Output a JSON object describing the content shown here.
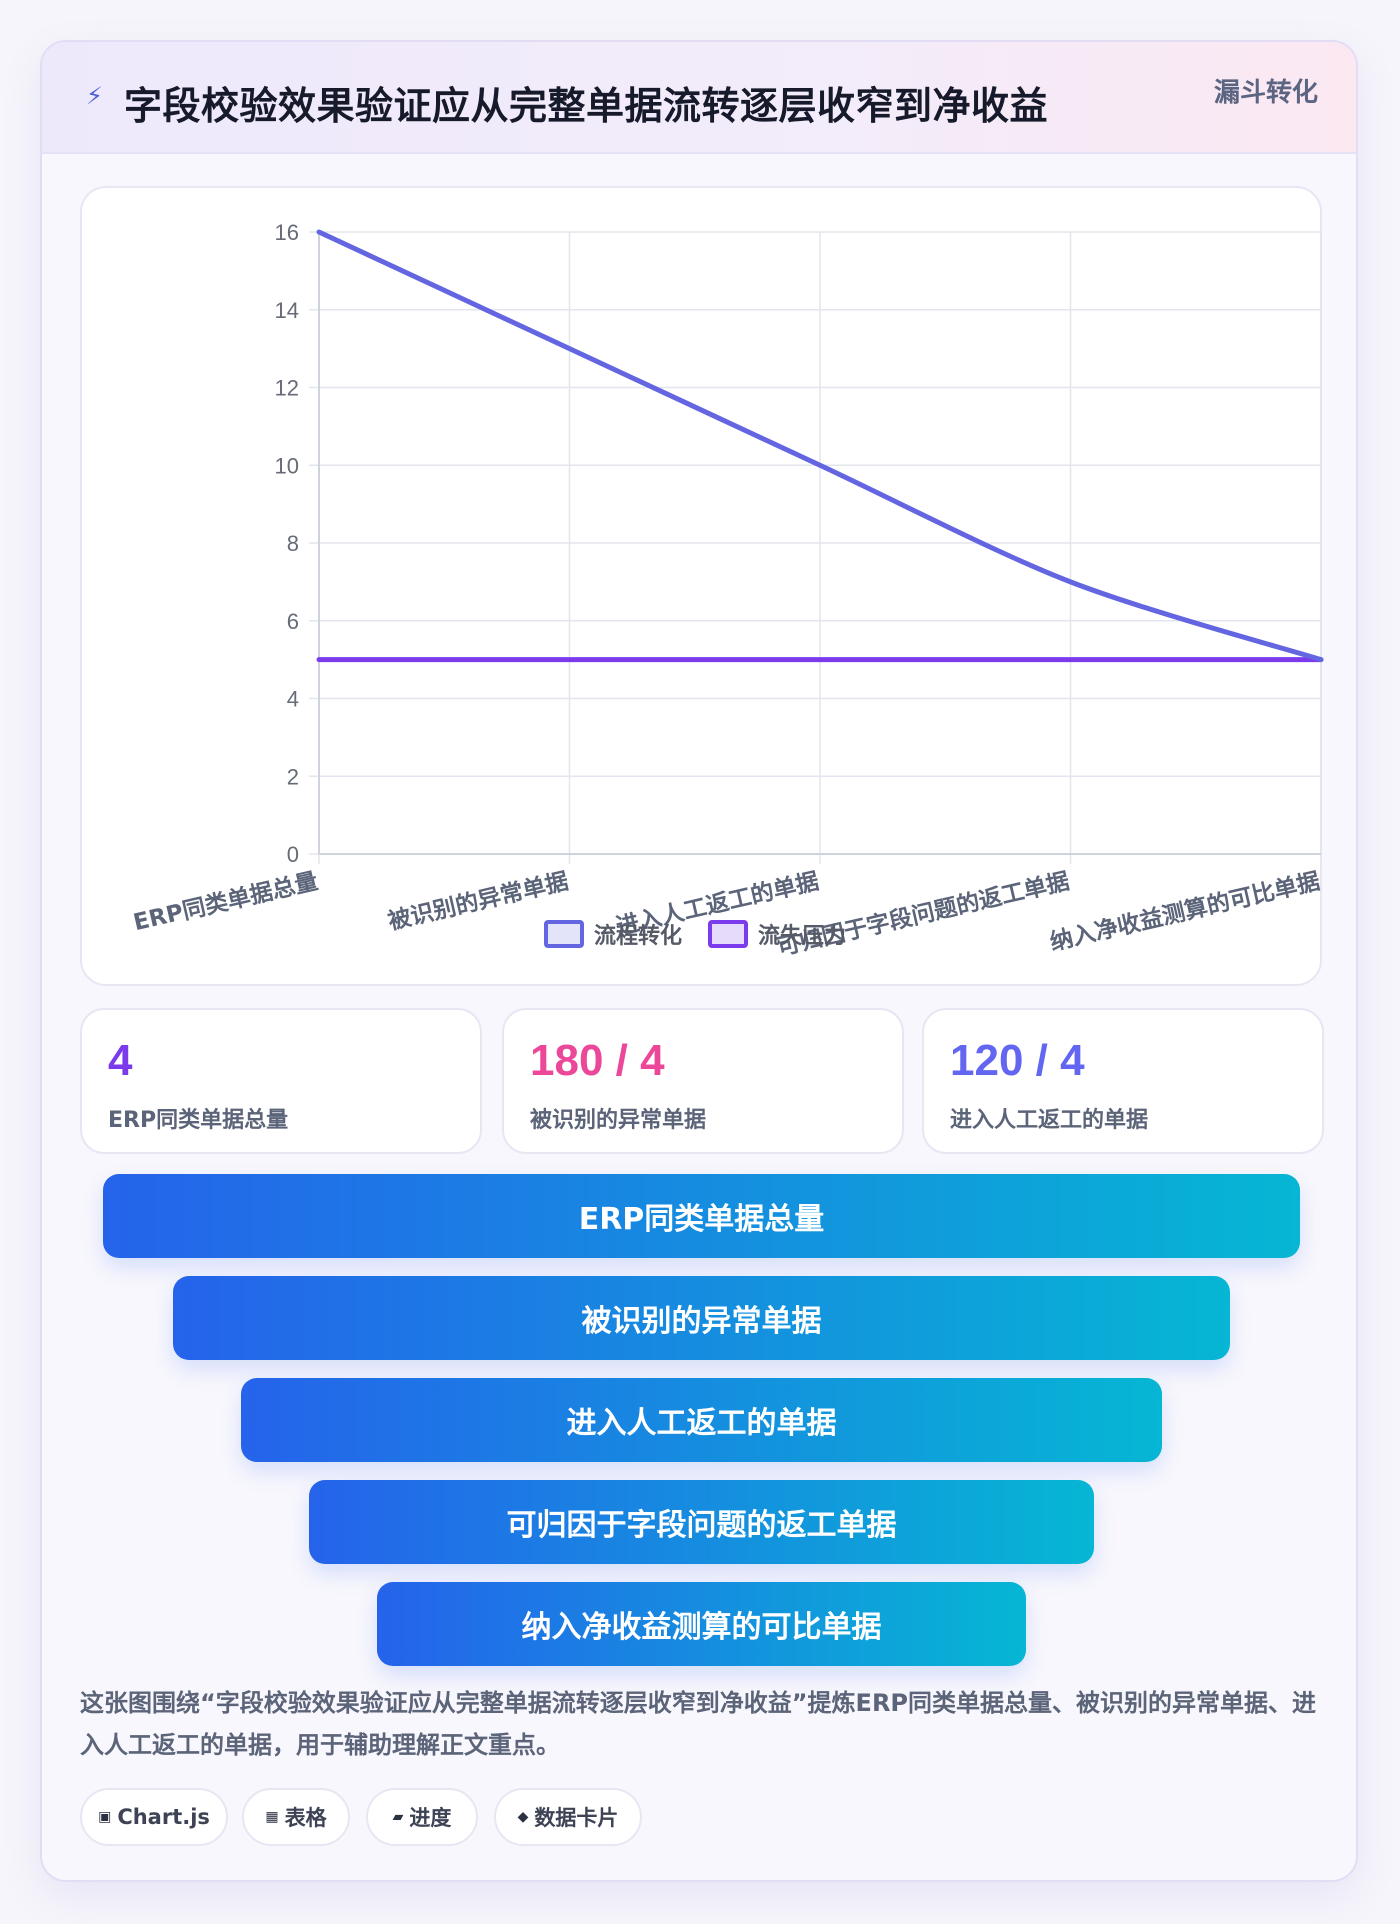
{
  "header": {
    "icon": "lightning-icon",
    "title": "字段校验效果验证应从完整单据流转逐层收窄到净收益",
    "tag": "漏斗转化"
  },
  "chart_data": {
    "type": "line",
    "categories": [
      "ERP同类单据总量",
      "被识别的异常单据",
      "进入人工返工的单据",
      "可归因于字段问题的返工单据",
      "纳入净收益测算的可比单据"
    ],
    "series": [
      {
        "name": "流程转化",
        "values": [
          16,
          13,
          10,
          7,
          5
        ],
        "color": "#6366e0"
      },
      {
        "name": "流失压力",
        "values": [
          5,
          5,
          5,
          5,
          5
        ],
        "color": "#7c3aed"
      }
    ],
    "ylim": [
      0,
      16
    ],
    "yticks": [
      0,
      2,
      4,
      6,
      8,
      10,
      12,
      14,
      16
    ],
    "grid": true,
    "legend": "bottom"
  },
  "stats": [
    {
      "value": "4",
      "label": "ERP同类单据总量",
      "color": "#7c3aed"
    },
    {
      "value": "180 / 4",
      "label": "被识别的异常单据",
      "color": "#ec4899"
    },
    {
      "value": "120 / 4",
      "label": "进入人工返工的单据",
      "color": "#6366f1"
    }
  ],
  "funnel": [
    {
      "label": "ERP同类单据总量"
    },
    {
      "label": "被识别的异常单据"
    },
    {
      "label": "进入人工返工的单据"
    },
    {
      "label": "可归因于字段问题的返工单据"
    },
    {
      "label": "纳入净收益测算的可比单据"
    }
  ],
  "description": "这张图围绕“字段校验效果验证应从完整单据流转逐层收窄到净收益”提炼ERP同类单据总量、被识别的异常单据、进入人工返工的单据，用于辅助理解正文重点。",
  "chips": [
    {
      "icon": "▣",
      "label": "Chart.js"
    },
    {
      "icon": "▦",
      "label": "表格"
    },
    {
      "icon": "▰",
      "label": "进度"
    },
    {
      "icon": "◆",
      "label": "数据卡片"
    }
  ]
}
